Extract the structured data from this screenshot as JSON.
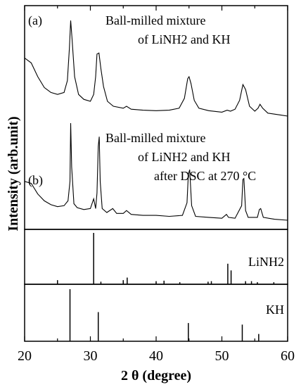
{
  "chart_data": [
    {
      "type": "line",
      "panel_label": "(a)",
      "annotation_lines": [
        "Ball-milled mixture",
        "of LiNH2 and KH"
      ],
      "xlim": [
        20,
        60
      ],
      "x": [
        20,
        21,
        22,
        23,
        24,
        25,
        26,
        26.5,
        26.8,
        27.0,
        27.2,
        27.6,
        28.2,
        29,
        30,
        30.5,
        30.8,
        31.0,
        31.3,
        31.6,
        32.0,
        32.6,
        33.5,
        35.0,
        35.5,
        36.2,
        38,
        40,
        42,
        43.5,
        44.3,
        44.8,
        45.0,
        45.3,
        45.8,
        46.5,
        48,
        50,
        50.8,
        51.3,
        52.0,
        52.7,
        53.2,
        53.6,
        54.2,
        55.0,
        55.5,
        55.8,
        56.2,
        57,
        58,
        59,
        60
      ],
      "y": [
        0.59,
        0.54,
        0.4,
        0.29,
        0.24,
        0.22,
        0.24,
        0.36,
        0.68,
        0.97,
        0.8,
        0.4,
        0.22,
        0.17,
        0.15,
        0.22,
        0.4,
        0.63,
        0.64,
        0.48,
        0.3,
        0.15,
        0.1,
        0.08,
        0.1,
        0.07,
        0.06,
        0.055,
        0.06,
        0.08,
        0.18,
        0.38,
        0.4,
        0.33,
        0.16,
        0.08,
        0.055,
        0.04,
        0.06,
        0.05,
        0.07,
        0.16,
        0.32,
        0.27,
        0.1,
        0.05,
        0.08,
        0.12,
        0.08,
        0.03,
        0.02,
        0.01,
        0.0
      ]
    },
    {
      "type": "line",
      "panel_label": "(b)",
      "annotation_lines": [
        "Ball-milled mixture",
        "of LiNH2 and KH",
        "after DSC at 270 °C"
      ],
      "xlim": [
        20,
        60
      ],
      "x": [
        20,
        21,
        22,
        23,
        24,
        25,
        26,
        26.6,
        26.9,
        27.0,
        27.15,
        27.5,
        28,
        29,
        30.0,
        30.5,
        30.8,
        31.0,
        31.2,
        31.35,
        31.5,
        31.8,
        32.5,
        33.4,
        34,
        35.0,
        35.5,
        36.2,
        38,
        40,
        42,
        44,
        44.7,
        44.9,
        45.1,
        45.4,
        46,
        48,
        50,
        50.7,
        51.0,
        52,
        53.0,
        53.2,
        53.35,
        53.6,
        54,
        55.4,
        55.7,
        55.9,
        56.3,
        58,
        60
      ],
      "y": [
        0.4,
        0.38,
        0.27,
        0.2,
        0.16,
        0.14,
        0.15,
        0.2,
        0.4,
        1.0,
        0.55,
        0.17,
        0.13,
        0.11,
        0.12,
        0.22,
        0.12,
        0.28,
        0.76,
        0.86,
        0.4,
        0.12,
        0.08,
        0.12,
        0.07,
        0.07,
        0.1,
        0.06,
        0.05,
        0.05,
        0.04,
        0.05,
        0.18,
        0.47,
        0.52,
        0.15,
        0.04,
        0.03,
        0.02,
        0.06,
        0.03,
        0.02,
        0.15,
        0.42,
        0.43,
        0.1,
        0.03,
        0.03,
        0.11,
        0.12,
        0.03,
        0.01,
        0.0
      ]
    },
    {
      "type": "bar",
      "reference": "LiNH2",
      "xlim": [
        20,
        60
      ],
      "ylim": [
        0,
        100
      ],
      "x": [
        25.0,
        30.5,
        31.6,
        35.0,
        35.6,
        40.0,
        41.2,
        43.6,
        47.9,
        48.4,
        50.9,
        51.4,
        53.6,
        54.5,
        55.4,
        57.9
      ],
      "values": [
        8,
        100,
        5,
        8,
        13,
        6,
        7,
        4,
        5,
        6,
        40,
        27,
        6,
        6,
        4,
        4
      ]
    },
    {
      "type": "bar",
      "reference": "KH",
      "xlim": [
        20,
        60
      ],
      "ylim": [
        0,
        100
      ],
      "x": [
        26.9,
        31.2,
        44.9,
        53.1,
        55.6
      ],
      "values": [
        100,
        56,
        35,
        32,
        14
      ]
    }
  ],
  "axes": {
    "xlabel": "2 θ (degree)",
    "ylabel": "Intensity (arb.unit)",
    "x_ticks": [
      "20",
      "30",
      "40",
      "50",
      "60"
    ]
  }
}
